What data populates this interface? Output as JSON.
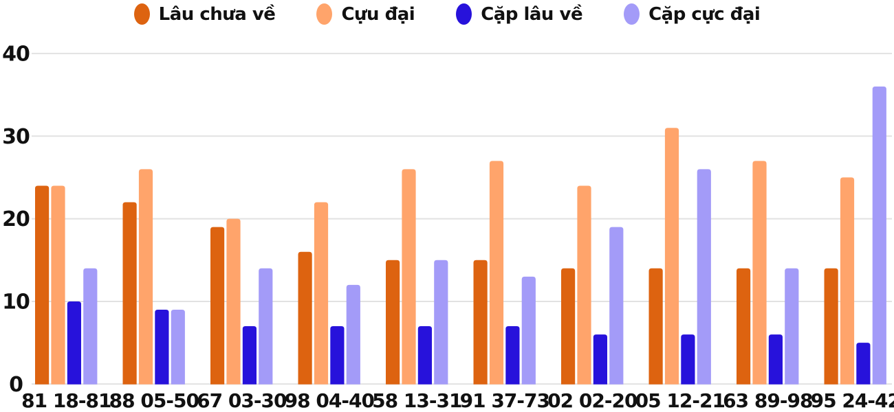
{
  "chart_data": {
    "type": "bar",
    "title": "",
    "categories": [
      "81 18-81",
      "88 05-50",
      "67 03-30",
      "98 04-40",
      "58 13-31",
      "91 37-73",
      "02 02-20",
      "05 12-21",
      "63 89-98",
      "95 24-42"
    ],
    "series": [
      {
        "name": "Lâu chưa về",
        "color": "#DD6310",
        "values": [
          24,
          22,
          19,
          16,
          15,
          15,
          14,
          14,
          14,
          14
        ]
      },
      {
        "name": "Cựu đại",
        "color": "#FFA46B",
        "values": [
          24,
          26,
          20,
          22,
          26,
          27,
          24,
          31,
          27,
          25
        ]
      },
      {
        "name": "Cặp lâu về",
        "color": "#2712DB",
        "values": [
          10,
          9,
          7,
          7,
          7,
          7,
          6,
          6,
          6,
          5
        ]
      },
      {
        "name": "Cặp cực đại",
        "color": "#A39BF8",
        "values": [
          14,
          9,
          14,
          12,
          15,
          13,
          19,
          26,
          14,
          36
        ]
      }
    ],
    "ylim": [
      0,
      40
    ],
    "yticks": [
      0,
      10,
      20,
      30,
      40
    ],
    "xlabel": "",
    "ylabel": "",
    "grid": true,
    "legend_position": "top"
  },
  "colors": {
    "grid": "#e2e2e2",
    "text": "#111111",
    "background": "#ffffff"
  }
}
